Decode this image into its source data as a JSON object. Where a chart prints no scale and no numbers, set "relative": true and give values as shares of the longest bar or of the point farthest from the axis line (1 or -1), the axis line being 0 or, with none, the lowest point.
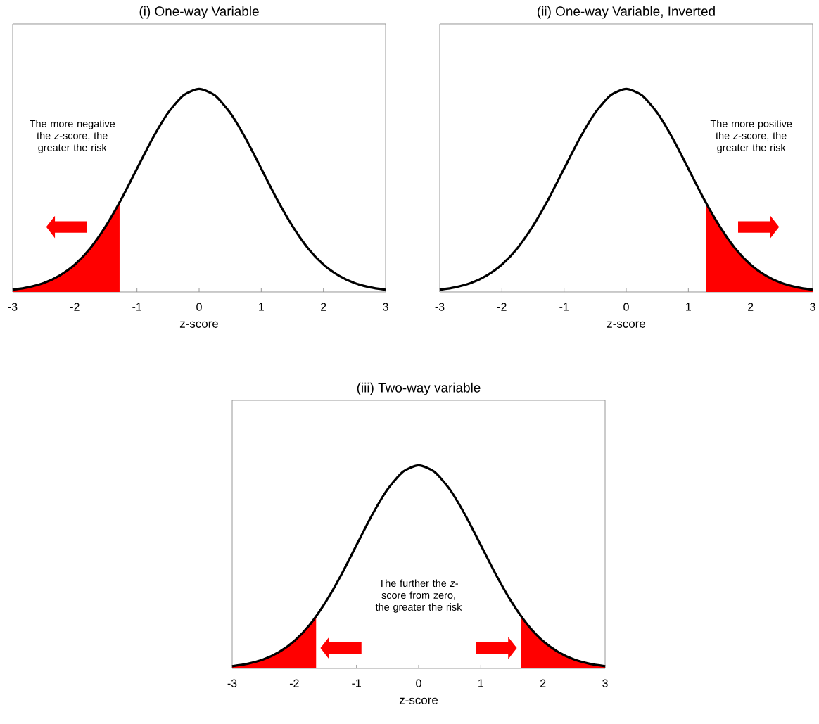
{
  "chart_data": [
    {
      "type": "line",
      "title": "(i) One-way Variable",
      "xlabel": "z-score",
      "relative": true,
      "xlim": [
        -3,
        3
      ],
      "xticks": [
        -3,
        -2,
        -1,
        0,
        1,
        2,
        3
      ],
      "tick_labels": "x",
      "annotations": [
        "The more negative the *z*-score, the greater the risk"
      ],
      "series": [
        {
          "color": "#000000",
          "x": [
            -3,
            -2.75,
            -2.5,
            -2.25,
            -2,
            -1.75,
            -1.5,
            -1.25,
            -1,
            -0.75,
            -0.5,
            -0.25,
            0,
            0.25,
            0.5,
            0.75,
            1,
            1.25,
            1.5,
            1.75,
            2,
            2.25,
            2.5,
            2.75,
            3
          ],
          "values": [
            0.011,
            0.023,
            0.044,
            0.08,
            0.135,
            0.216,
            0.325,
            0.458,
            0.607,
            0.755,
            0.882,
            0.969,
            1,
            0.969,
            0.882,
            0.755,
            0.607,
            0.458,
            0.325,
            0.216,
            0.135,
            0.08,
            0.044,
            0.023,
            0.011
          ]
        },
        {
          "type": "area",
          "color": "#ff0000",
          "x": [
            -3,
            -2.75,
            -2.5,
            -2.25,
            -2,
            -1.75,
            -1.5,
            -1.28
          ],
          "values": [
            0.011,
            0.023,
            0.044,
            0.08,
            0.135,
            0.216,
            0.325,
            0.441
          ]
        }
      ]
    },
    {
      "type": "line",
      "title": "(ii) One-way Variable, Inverted",
      "xlabel": "z-score",
      "relative": true,
      "xlim": [
        -3,
        3
      ],
      "xticks": [
        -3,
        -2,
        -1,
        0,
        1,
        2,
        3
      ],
      "tick_labels": "x",
      "annotations": [
        "The more positive the *z*-score, the greater the risk"
      ],
      "series": [
        {
          "color": "#000000",
          "x": [
            -3,
            -2.75,
            -2.5,
            -2.25,
            -2,
            -1.75,
            -1.5,
            -1.25,
            -1,
            -0.75,
            -0.5,
            -0.25,
            0,
            0.25,
            0.5,
            0.75,
            1,
            1.25,
            1.5,
            1.75,
            2,
            2.25,
            2.5,
            2.75,
            3
          ],
          "values": [
            0.011,
            0.023,
            0.044,
            0.08,
            0.135,
            0.216,
            0.325,
            0.458,
            0.607,
            0.755,
            0.882,
            0.969,
            1,
            0.969,
            0.882,
            0.755,
            0.607,
            0.458,
            0.325,
            0.216,
            0.135,
            0.08,
            0.044,
            0.023,
            0.011
          ]
        },
        {
          "type": "area",
          "color": "#ff0000",
          "x": [
            1.28,
            1.5,
            1.75,
            2,
            2.25,
            2.5,
            2.75,
            3
          ],
          "values": [
            0.441,
            0.325,
            0.216,
            0.135,
            0.08,
            0.044,
            0.023,
            0.011
          ]
        }
      ]
    },
    {
      "type": "line",
      "title": "(iii) Two-way variable",
      "xlabel": "z-score",
      "relative": true,
      "xlim": [
        -3,
        3
      ],
      "xticks": [
        -3,
        -2,
        -1,
        0,
        1,
        2,
        3
      ],
      "tick_labels": "x",
      "annotations": [
        "The further the *z*-score from zero, the greater the risk"
      ],
      "series": [
        {
          "color": "#000000",
          "x": [
            -3,
            -2.75,
            -2.5,
            -2.25,
            -2,
            -1.75,
            -1.5,
            -1.25,
            -1,
            -0.75,
            -0.5,
            -0.25,
            0,
            0.25,
            0.5,
            0.75,
            1,
            1.25,
            1.5,
            1.75,
            2,
            2.25,
            2.5,
            2.75,
            3
          ],
          "values": [
            0.011,
            0.023,
            0.044,
            0.08,
            0.135,
            0.216,
            0.325,
            0.458,
            0.607,
            0.755,
            0.882,
            0.969,
            1,
            0.969,
            0.882,
            0.755,
            0.607,
            0.458,
            0.325,
            0.216,
            0.135,
            0.08,
            0.044,
            0.023,
            0.011
          ]
        },
        {
          "type": "area",
          "color": "#ff0000",
          "x": [
            -3,
            -2.75,
            -2.5,
            -2.25,
            -2,
            -1.75,
            -1.65
          ],
          "values": [
            0.011,
            0.023,
            0.044,
            0.08,
            0.135,
            0.216,
            0.256
          ]
        },
        {
          "type": "area",
          "color": "#ff0000",
          "x": [
            1.65,
            1.75,
            2,
            2.25,
            2.5,
            2.75,
            3
          ],
          "values": [
            0.256,
            0.216,
            0.135,
            0.08,
            0.044,
            0.023,
            0.011
          ]
        }
      ]
    }
  ]
}
